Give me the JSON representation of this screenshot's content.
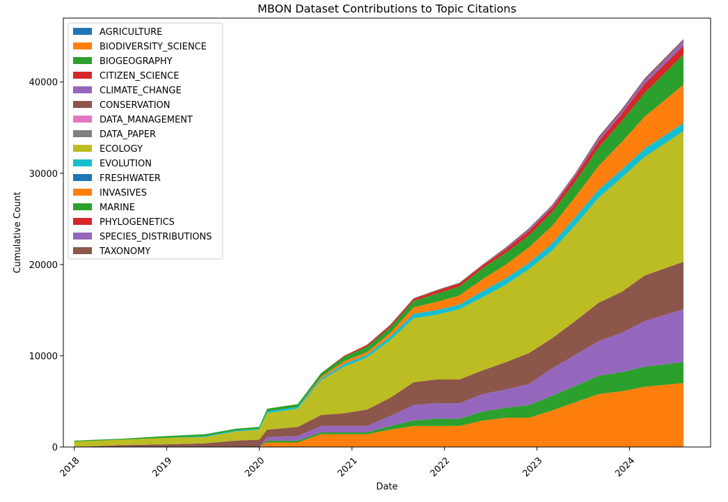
{
  "chart_data": {
    "type": "area",
    "stacked": true,
    "title": "MBON Dataset Contributions to Topic Citations",
    "xlabel": "Date",
    "ylabel": "Cumulative Count",
    "xlim": [
      "2017-11-19",
      "2024-11-16"
    ],
    "ylim": [
      0,
      47000
    ],
    "xticks": [
      "2018",
      "2019",
      "2020",
      "2021",
      "2022",
      "2023",
      "2024"
    ],
    "yticks": [
      0,
      10000,
      20000,
      30000,
      40000
    ],
    "grid": false,
    "legend_position": "top-left",
    "x": [
      "2018-01",
      "2018-07",
      "2019-01",
      "2019-06",
      "2019-10",
      "2020-01",
      "2020-02",
      "2020-06",
      "2020-09",
      "2020-12",
      "2021-03",
      "2021-06",
      "2021-09",
      "2021-12",
      "2022-03",
      "2022-06",
      "2022-09",
      "2022-12",
      "2023-03",
      "2023-06",
      "2023-09",
      "2023-12",
      "2024-03",
      "2024-08"
    ],
    "series": [
      {
        "name": "AGRICULTURE",
        "color": "#1f77b4",
        "values": [
          0,
          0,
          0,
          0,
          0,
          0,
          0,
          0,
          0,
          0,
          0,
          0,
          0,
          0,
          0,
          0,
          0,
          0,
          0,
          0,
          0,
          0,
          0,
          0
        ]
      },
      {
        "name": "BIODIVERSITY_SCIENCE",
        "color": "#ff7f0e",
        "values": [
          0,
          0,
          0,
          0,
          0,
          0,
          500,
          500,
          1400,
          1400,
          1400,
          1900,
          2300,
          2300,
          2300,
          2900,
          3200,
          3200,
          4000,
          4900,
          5800,
          6100,
          6600,
          7000
        ]
      },
      {
        "name": "BIOGEOGRAPHY",
        "color": "#2ca02c",
        "values": [
          0,
          0,
          0,
          0,
          0,
          0,
          200,
          200,
          200,
          200,
          200,
          400,
          600,
          800,
          800,
          1000,
          1100,
          1400,
          1600,
          1800,
          2000,
          2100,
          2200,
          2300
        ]
      },
      {
        "name": "CITIZEN_SCIENCE",
        "color": "#d62728",
        "values": [
          0,
          0,
          0,
          0,
          0,
          0,
          0,
          0,
          0,
          0,
          0,
          0,
          0,
          0,
          0,
          0,
          0,
          0,
          0,
          0,
          0,
          0,
          0,
          0
        ]
      },
      {
        "name": "CLIMATE_CHANGE",
        "color": "#9467bd",
        "values": [
          0,
          0,
          0,
          0,
          0,
          0,
          400,
          500,
          700,
          700,
          700,
          1100,
          1700,
          1700,
          1700,
          1900,
          2000,
          2300,
          3000,
          3400,
          3800,
          4300,
          5000,
          5800
        ]
      },
      {
        "name": "CONSERVATION",
        "color": "#8c564b",
        "values": [
          0,
          200,
          300,
          400,
          700,
          800,
          800,
          1000,
          1200,
          1400,
          1800,
          2000,
          2500,
          2600,
          2600,
          2600,
          3000,
          3400,
          3300,
          3700,
          4200,
          4500,
          5000,
          5200
        ]
      },
      {
        "name": "DATA_MANAGEMENT",
        "color": "#e377c2",
        "values": [
          0,
          0,
          0,
          0,
          0,
          0,
          0,
          0,
          0,
          0,
          0,
          0,
          0,
          0,
          0,
          0,
          0,
          0,
          0,
          0,
          0,
          0,
          0,
          0
        ]
      },
      {
        "name": "DATA_PAPER",
        "color": "#7f7f7f",
        "values": [
          0,
          0,
          0,
          0,
          0,
          0,
          0,
          0,
          0,
          0,
          0,
          0,
          0,
          0,
          0,
          0,
          0,
          0,
          0,
          0,
          0,
          0,
          0,
          0
        ]
      },
      {
        "name": "ECOLOGY",
        "color": "#bcbd22",
        "values": [
          600,
          600,
          700,
          700,
          1000,
          1100,
          1800,
          2000,
          3800,
          5100,
          5700,
          6300,
          7000,
          7100,
          7700,
          8000,
          8500,
          9200,
          9600,
          10500,
          11500,
          12500,
          13000,
          14300
        ]
      },
      {
        "name": "EVOLUTION",
        "color": "#17becf",
        "values": [
          0,
          0,
          0,
          100,
          100,
          100,
          200,
          200,
          200,
          300,
          300,
          400,
          500,
          500,
          500,
          700,
          700,
          700,
          800,
          900,
          900,
          900,
          900,
          900
        ]
      },
      {
        "name": "FRESHWATER",
        "color": "#1f77b4",
        "values": [
          0,
          0,
          0,
          0,
          0,
          0,
          0,
          0,
          0,
          0,
          0,
          0,
          0,
          0,
          0,
          0,
          0,
          0,
          0,
          0,
          0,
          0,
          0,
          0
        ]
      },
      {
        "name": "INVASIVES",
        "color": "#ff7f0e",
        "values": [
          0,
          0,
          0,
          0,
          0,
          0,
          0,
          0,
          200,
          300,
          300,
          400,
          700,
          900,
          1000,
          1300,
          1500,
          1700,
          1900,
          2200,
          2600,
          3000,
          3500,
          4200
        ]
      },
      {
        "name": "MARINE",
        "color": "#2ca02c",
        "values": [
          100,
          100,
          200,
          200,
          200,
          200,
          300,
          300,
          400,
          500,
          600,
          600,
          700,
          900,
          1000,
          1200,
          1300,
          1300,
          1500,
          1700,
          2000,
          2300,
          2600,
          3300
        ]
      },
      {
        "name": "PHYLOGENETICS",
        "color": "#d62728",
        "values": [
          0,
          0,
          0,
          0,
          0,
          0,
          0,
          0,
          0,
          100,
          200,
          200,
          200,
          300,
          300,
          300,
          400,
          500,
          500,
          600,
          700,
          800,
          1000,
          1000
        ]
      },
      {
        "name": "SPECIES_DISTRIBUTIONS",
        "color": "#9467bd",
        "values": [
          0,
          0,
          0,
          0,
          0,
          0,
          0,
          0,
          0,
          0,
          0,
          0,
          0,
          0,
          0,
          0,
          100,
          200,
          200,
          200,
          300,
          300,
          400,
          500
        ]
      },
      {
        "name": "TAXONOMY",
        "color": "#8c564b",
        "values": [
          0,
          0,
          0,
          0,
          0,
          0,
          0,
          0,
          0,
          0,
          0,
          100,
          100,
          100,
          100,
          100,
          100,
          100,
          100,
          100,
          200,
          200,
          200,
          200
        ]
      }
    ]
  }
}
